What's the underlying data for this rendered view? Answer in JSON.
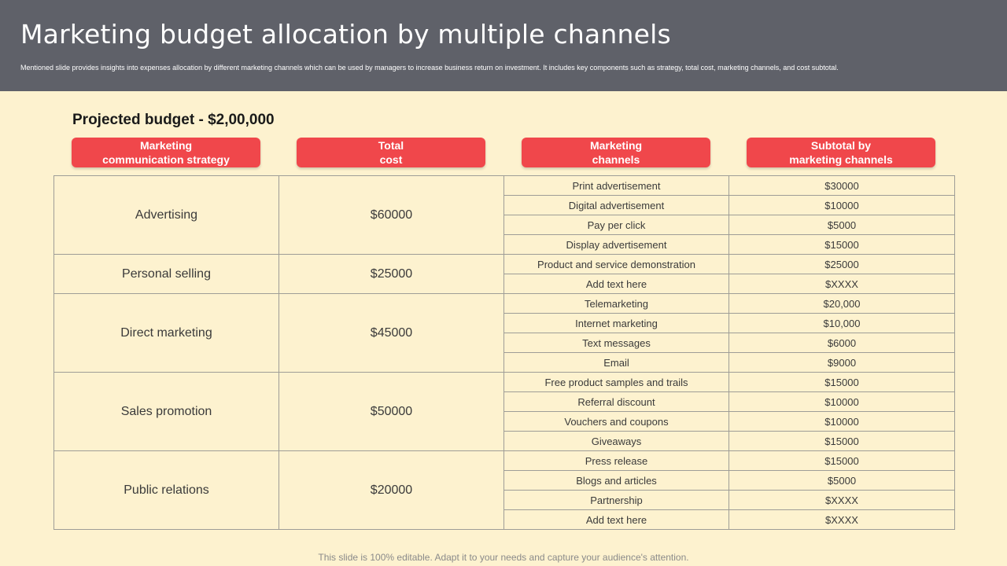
{
  "title": "Marketing budget allocation by multiple channels",
  "subtitle": "Mentioned slide provides insights into expenses allocation by different marketing channels which can be used by managers to increase business return on investment. It includes key components such as strategy, total cost, marketing channels, and cost subtotal.",
  "projected_budget": "Projected budget - $2,00,000",
  "column_headers": [
    {
      "line1": "Marketing",
      "line2": "communication strategy"
    },
    {
      "line1": "Total",
      "line2": "cost"
    },
    {
      "line1": "Marketing",
      "line2": "channels"
    },
    {
      "line1": "Subtotal by",
      "line2": "marketing channels"
    }
  ],
  "groups": [
    {
      "strategy": "Advertising",
      "total": "$60000",
      "channels": [
        {
          "name": "Print advertisement",
          "subtotal": "$30000"
        },
        {
          "name": "Digital advertisement",
          "subtotal": "$10000"
        },
        {
          "name": "Pay per click",
          "subtotal": "$5000"
        },
        {
          "name": "Display advertisement",
          "subtotal": "$15000"
        }
      ]
    },
    {
      "strategy": "Personal selling",
      "total": "$25000",
      "channels": [
        {
          "name": "Product and service demonstration",
          "subtotal": "$25000"
        },
        {
          "name": "Add text here",
          "subtotal": "$XXXX"
        }
      ]
    },
    {
      "strategy": "Direct marketing",
      "total": "$45000",
      "channels": [
        {
          "name": "Telemarketing",
          "subtotal": "$20,000"
        },
        {
          "name": "Internet marketing",
          "subtotal": "$10,000"
        },
        {
          "name": "Text messages",
          "subtotal": "$6000"
        },
        {
          "name": "Email",
          "subtotal": "$9000"
        }
      ]
    },
    {
      "strategy": "Sales promotion",
      "total": "$50000",
      "channels": [
        {
          "name": "Free product samples and trails",
          "subtotal": "$15000"
        },
        {
          "name": "Referral discount",
          "subtotal": "$10000"
        },
        {
          "name": "Vouchers and coupons",
          "subtotal": "$10000"
        },
        {
          "name": "Giveaways",
          "subtotal": "$15000"
        }
      ]
    },
    {
      "strategy": "Public relations",
      "total": "$20000",
      "channels": [
        {
          "name": "Press release",
          "subtotal": "$15000"
        },
        {
          "name": "Blogs and articles",
          "subtotal": "$5000"
        },
        {
          "name": "Partnership",
          "subtotal": "$XXXX"
        },
        {
          "name": "Add text here",
          "subtotal": "$XXXX"
        }
      ]
    }
  ],
  "footer": "This slide is 100% editable. Adapt it to your needs and capture your audience's attention.",
  "colors": {
    "header_bg": "#5f6169",
    "slide_bg": "#fdf2cf",
    "accent_red": "#f0474b",
    "grid_line": "#9e9d97"
  }
}
